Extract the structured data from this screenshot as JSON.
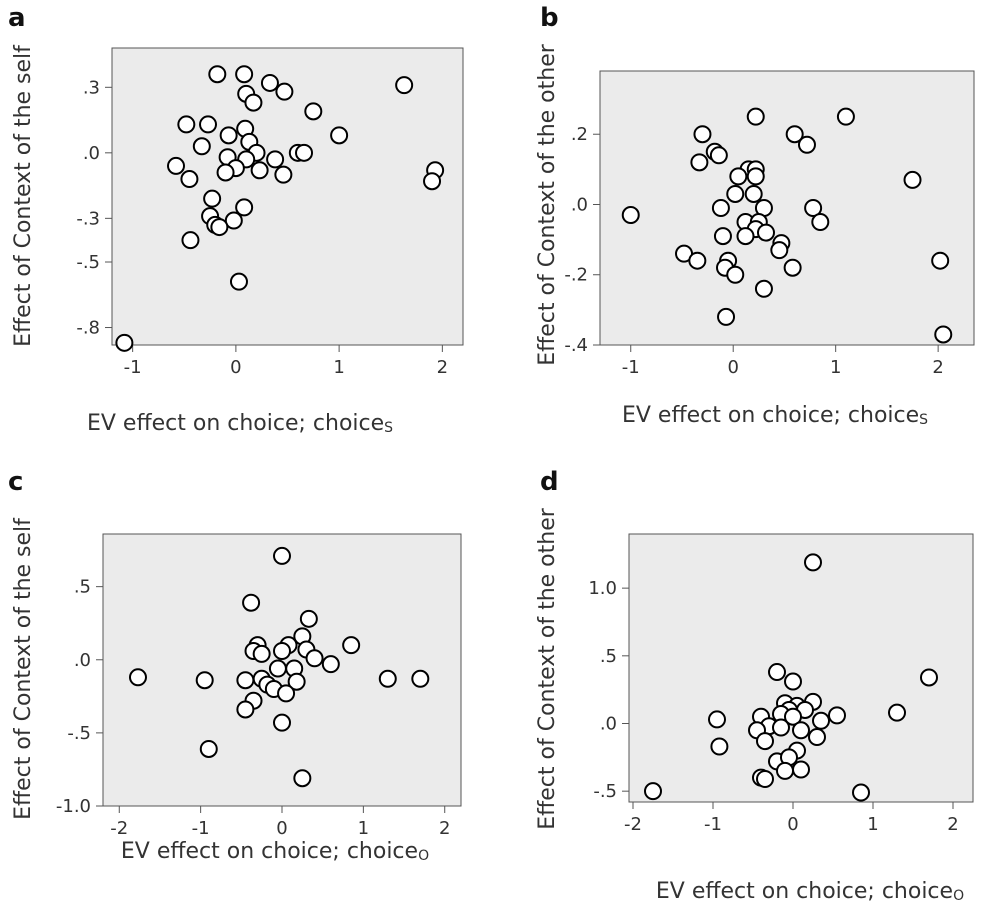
{
  "chart_data": [
    {
      "panel": "a",
      "type": "scatter",
      "xlabel": "EV effect on choice; choice",
      "xlabel_sub": "S",
      "ylabel": "Effect of Context  of the self",
      "xticks": [
        -1,
        0,
        1,
        2
      ],
      "xtick_labels": [
        "-1",
        "0",
        "1",
        "2"
      ],
      "yticks": [
        0.3,
        0.0,
        -0.3,
        -0.5,
        -0.8
      ],
      "ytick_labels": [
        ".3",
        ".0",
        "-.3",
        "-.5",
        "-.8"
      ],
      "xlim": [
        -1.2,
        2.2
      ],
      "ylim": [
        -0.88,
        0.48
      ],
      "points": [
        {
          "x": -0.18,
          "y": 0.36
        },
        {
          "x": 0.08,
          "y": 0.36
        },
        {
          "x": 0.33,
          "y": 0.32
        },
        {
          "x": 0.47,
          "y": 0.28
        },
        {
          "x": 0.1,
          "y": 0.27
        },
        {
          "x": 0.17,
          "y": 0.23
        },
        {
          "x": 0.75,
          "y": 0.19
        },
        {
          "x": -0.48,
          "y": 0.13
        },
        {
          "x": -0.27,
          "y": 0.13
        },
        {
          "x": 0.09,
          "y": 0.11
        },
        {
          "x": -0.07,
          "y": 0.08
        },
        {
          "x": 1.0,
          "y": 0.08
        },
        {
          "x": 0.13,
          "y": 0.05
        },
        {
          "x": -0.33,
          "y": 0.03
        },
        {
          "x": 0.2,
          "y": 0.0
        },
        {
          "x": 0.6,
          "y": 0.0
        },
        {
          "x": 0.66,
          "y": 0.0
        },
        {
          "x": -0.08,
          "y": -0.02
        },
        {
          "x": 0.1,
          "y": -0.03
        },
        {
          "x": 0.38,
          "y": -0.03
        },
        {
          "x": -0.58,
          "y": -0.06
        },
        {
          "x": 0.0,
          "y": -0.07
        },
        {
          "x": 0.23,
          "y": -0.08
        },
        {
          "x": -0.1,
          "y": -0.09
        },
        {
          "x": 0.46,
          "y": -0.1
        },
        {
          "x": -0.45,
          "y": -0.12
        },
        {
          "x": 1.93,
          "y": -0.08
        },
        {
          "x": 1.9,
          "y": -0.13
        },
        {
          "x": -0.23,
          "y": -0.21
        },
        {
          "x": 0.08,
          "y": -0.25
        },
        {
          "x": -0.25,
          "y": -0.29
        },
        {
          "x": -0.02,
          "y": -0.31
        },
        {
          "x": -0.2,
          "y": -0.33
        },
        {
          "x": -0.16,
          "y": -0.34
        },
        {
          "x": -0.44,
          "y": -0.4
        },
        {
          "x": 0.03,
          "y": -0.59
        },
        {
          "x": 1.63,
          "y": 0.31
        },
        {
          "x": -1.08,
          "y": -0.87
        }
      ]
    },
    {
      "panel": "b",
      "type": "scatter",
      "xlabel": "EV effect on choice; choice",
      "xlabel_sub": "S",
      "ylabel": "Effect of Context  of the other",
      "xticks": [
        -1,
        0,
        1,
        2
      ],
      "xtick_labels": [
        "-1",
        "0",
        "1",
        "2"
      ],
      "yticks": [
        0.2,
        0.0,
        -0.2,
        -0.4
      ],
      "ytick_labels": [
        ".2",
        ".0",
        "-.2",
        "-.4"
      ],
      "xlim": [
        -1.3,
        2.35
      ],
      "ylim": [
        -0.4,
        0.38
      ],
      "points": [
        {
          "x": 0.22,
          "y": 0.25
        },
        {
          "x": 1.1,
          "y": 0.25
        },
        {
          "x": -0.3,
          "y": 0.2
        },
        {
          "x": 0.6,
          "y": 0.2
        },
        {
          "x": 0.72,
          "y": 0.17
        },
        {
          "x": -0.18,
          "y": 0.15
        },
        {
          "x": -0.14,
          "y": 0.14
        },
        {
          "x": -0.33,
          "y": 0.12
        },
        {
          "x": 0.15,
          "y": 0.1
        },
        {
          "x": 0.22,
          "y": 0.1
        },
        {
          "x": 0.05,
          "y": 0.08
        },
        {
          "x": 0.22,
          "y": 0.08
        },
        {
          "x": 1.75,
          "y": 0.07
        },
        {
          "x": 0.02,
          "y": 0.03
        },
        {
          "x": 0.2,
          "y": 0.03
        },
        {
          "x": -0.12,
          "y": -0.01
        },
        {
          "x": 0.3,
          "y": -0.01
        },
        {
          "x": 0.78,
          "y": -0.01
        },
        {
          "x": -1.0,
          "y": -0.03
        },
        {
          "x": 0.12,
          "y": -0.05
        },
        {
          "x": 0.25,
          "y": -0.05
        },
        {
          "x": 0.85,
          "y": -0.05
        },
        {
          "x": 0.22,
          "y": -0.07
        },
        {
          "x": 0.32,
          "y": -0.08
        },
        {
          "x": -0.1,
          "y": -0.09
        },
        {
          "x": 0.12,
          "y": -0.09
        },
        {
          "x": 0.47,
          "y": -0.11
        },
        {
          "x": 0.45,
          "y": -0.13
        },
        {
          "x": -0.48,
          "y": -0.14
        },
        {
          "x": -0.35,
          "y": -0.16
        },
        {
          "x": -0.05,
          "y": -0.16
        },
        {
          "x": 2.02,
          "y": -0.16
        },
        {
          "x": -0.08,
          "y": -0.18
        },
        {
          "x": 0.58,
          "y": -0.18
        },
        {
          "x": 0.02,
          "y": -0.2
        },
        {
          "x": 0.3,
          "y": -0.24
        },
        {
          "x": -0.07,
          "y": -0.32
        },
        {
          "x": 2.05,
          "y": -0.37
        }
      ]
    },
    {
      "panel": "c",
      "type": "scatter",
      "xlabel": "EV effect on choice; choice",
      "xlabel_sub": "O",
      "ylabel": "Effect of Context  of the self",
      "xticks": [
        -2,
        -1,
        0,
        1,
        2
      ],
      "xtick_labels": [
        "-2",
        "-1",
        "0",
        "1",
        "2"
      ],
      "yticks": [
        0.5,
        0.0,
        -0.5,
        -1.0
      ],
      "ytick_labels": [
        ".5",
        ".0",
        "-.5",
        "-1.0"
      ],
      "xlim": [
        -2.2,
        2.2
      ],
      "ylim": [
        -1.0,
        0.86
      ],
      "points": [
        {
          "x": 0.0,
          "y": 0.71
        },
        {
          "x": -0.38,
          "y": 0.39
        },
        {
          "x": 0.33,
          "y": 0.28
        },
        {
          "x": 0.25,
          "y": 0.16
        },
        {
          "x": 0.85,
          "y": 0.1
        },
        {
          "x": -0.3,
          "y": 0.1
        },
        {
          "x": 0.08,
          "y": 0.1
        },
        {
          "x": 0.3,
          "y": 0.07
        },
        {
          "x": -0.35,
          "y": 0.06
        },
        {
          "x": 0.0,
          "y": 0.06
        },
        {
          "x": -0.25,
          "y": 0.04
        },
        {
          "x": 0.4,
          "y": 0.01
        },
        {
          "x": 0.6,
          "y": -0.03
        },
        {
          "x": -0.05,
          "y": -0.06
        },
        {
          "x": 0.15,
          "y": -0.06
        },
        {
          "x": -1.77,
          "y": -0.12
        },
        {
          "x": -0.95,
          "y": -0.14
        },
        {
          "x": -0.45,
          "y": -0.14
        },
        {
          "x": -0.25,
          "y": -0.13
        },
        {
          "x": -0.18,
          "y": -0.17
        },
        {
          "x": -0.1,
          "y": -0.2
        },
        {
          "x": 0.18,
          "y": -0.15
        },
        {
          "x": 0.05,
          "y": -0.23
        },
        {
          "x": 1.3,
          "y": -0.13
        },
        {
          "x": 1.7,
          "y": -0.13
        },
        {
          "x": -0.35,
          "y": -0.28
        },
        {
          "x": -0.45,
          "y": -0.34
        },
        {
          "x": 0.0,
          "y": -0.43
        },
        {
          "x": -0.9,
          "y": -0.61
        },
        {
          "x": 0.25,
          "y": -0.81
        }
      ]
    },
    {
      "panel": "d",
      "type": "scatter",
      "xlabel": "EV effect on choice; choice",
      "xlabel_sub": "O",
      "ylabel": "Effect of Context  of the other",
      "xticks": [
        -2,
        -1,
        0,
        1,
        2
      ],
      "xtick_labels": [
        "-2",
        "-1",
        "0",
        "1",
        "2"
      ],
      "yticks": [
        1.0,
        0.5,
        0.0,
        -0.5
      ],
      "ytick_labels": [
        "1.0",
        ".5",
        ".0",
        "-.5"
      ],
      "xlim": [
        -2.05,
        2.25
      ],
      "ylim": [
        -0.58,
        1.4
      ],
      "points": [
        {
          "x": 0.25,
          "y": 1.19
        },
        {
          "x": 1.7,
          "y": 0.34
        },
        {
          "x": -0.2,
          "y": 0.38
        },
        {
          "x": 0.0,
          "y": 0.31
        },
        {
          "x": 0.25,
          "y": 0.16
        },
        {
          "x": -0.1,
          "y": 0.15
        },
        {
          "x": 0.05,
          "y": 0.13
        },
        {
          "x": 0.15,
          "y": 0.1
        },
        {
          "x": -0.05,
          "y": 0.1
        },
        {
          "x": -0.15,
          "y": 0.07
        },
        {
          "x": 0.55,
          "y": 0.06
        },
        {
          "x": 0.0,
          "y": 0.05
        },
        {
          "x": -0.4,
          "y": 0.05
        },
        {
          "x": 1.3,
          "y": 0.08
        },
        {
          "x": -0.95,
          "y": 0.03
        },
        {
          "x": 0.35,
          "y": 0.02
        },
        {
          "x": -0.3,
          "y": -0.02
        },
        {
          "x": -0.15,
          "y": -0.03
        },
        {
          "x": 0.1,
          "y": -0.05
        },
        {
          "x": -0.45,
          "y": -0.05
        },
        {
          "x": 0.3,
          "y": -0.1
        },
        {
          "x": -0.35,
          "y": -0.13
        },
        {
          "x": -0.92,
          "y": -0.17
        },
        {
          "x": 0.05,
          "y": -0.2
        },
        {
          "x": -0.2,
          "y": -0.28
        },
        {
          "x": -0.05,
          "y": -0.25
        },
        {
          "x": -0.1,
          "y": -0.35
        },
        {
          "x": 0.1,
          "y": -0.34
        },
        {
          "x": -0.4,
          "y": -0.4
        },
        {
          "x": -0.35,
          "y": -0.41
        },
        {
          "x": -1.75,
          "y": -0.5
        },
        {
          "x": 0.85,
          "y": -0.51
        }
      ]
    }
  ]
}
